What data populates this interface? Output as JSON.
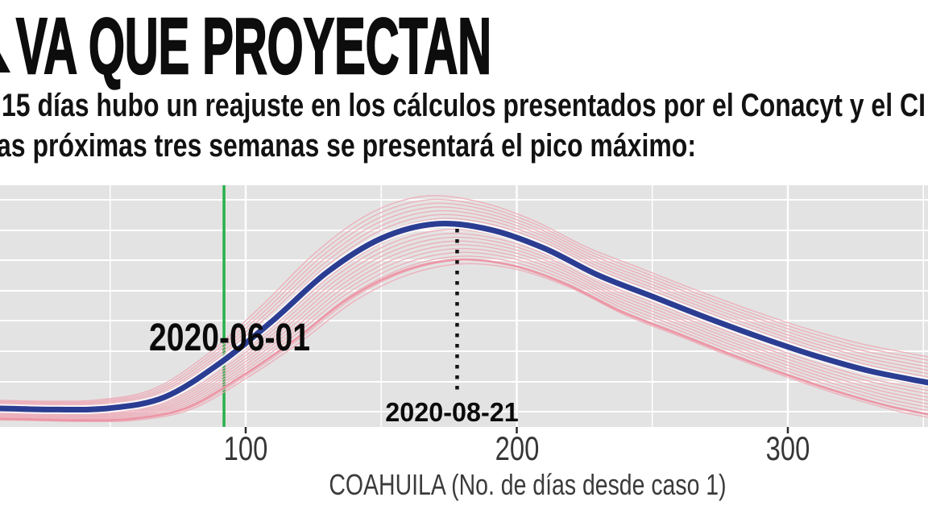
{
  "header": {
    "title": "VA QUE PROYECTAN",
    "subtitle_line1": "15 días hubo un reajuste en los cálculos presentados por el Conacyt y el CI",
    "subtitle_line2": "as próximas tres semanas se presentará el pico máximo:"
  },
  "chart_data": {
    "type": "line",
    "title": "",
    "xlabel": "COAHUILA (No. de días desde caso 1)",
    "ylabel": "",
    "x_ticks": [
      100,
      200,
      300
    ],
    "x_minor_ticks": [
      50,
      150,
      250,
      350
    ],
    "x_visible_range": [
      9,
      352
    ],
    "y_axis_labels_visible": false,
    "grid": {
      "background": "on",
      "h_lines": 8,
      "legend": "none"
    },
    "series": [
      {
        "name": "curva-central-proyectada",
        "color": "#2b3d92",
        "points": [
          [
            -15,
            0.08
          ],
          [
            8,
            0.077
          ],
          [
            30,
            0.072
          ],
          [
            50,
            0.078
          ],
          [
            70,
            0.123
          ],
          [
            90,
            0.26
          ],
          [
            110,
            0.44
          ],
          [
            130,
            0.64
          ],
          [
            150,
            0.78
          ],
          [
            170,
            0.84
          ],
          [
            190,
            0.817
          ],
          [
            210,
            0.74
          ],
          [
            230,
            0.628
          ],
          [
            250,
            0.54
          ],
          [
            270,
            0.452
          ],
          [
            290,
            0.37
          ],
          [
            310,
            0.295
          ],
          [
            330,
            0.232
          ],
          [
            352,
            0.183
          ],
          [
            372,
            0.14
          ]
        ],
        "y_units": "relativo al panel (0 = base, 1 = tope; eje Y sin etiquetas visibles)"
      }
    ],
    "fan": {
      "name": "escenarios-ensamble",
      "count": 19,
      "offset_range": [
        -0.165,
        0.115
      ],
      "delay_range": [
        10,
        -4
      ],
      "envelope_start": 50,
      "envelope_span": 110,
      "envelope_min": 0.3,
      "median": {
        "offset": -0.148,
        "delay": 8
      }
    },
    "annotations": [
      {
        "label": "2020-06-01",
        "day": 92,
        "line_style": "solid",
        "color": "#28b14c"
      },
      {
        "label": "2020-08-21",
        "day": 178,
        "line_style": "dotted",
        "color": "#141414"
      }
    ],
    "colors": {
      "line_main": "#2b3d92",
      "line_casing": "rgba(255,255,255,0.85)",
      "scenario": "#edaab6",
      "scenario_strong": "#ec93a3",
      "event_line": "#28b14c",
      "dotted_line": "#141414",
      "panel_bg": "#e3e3e3",
      "grid": "#ffffff",
      "tick_mark": "#2b2b2b"
    }
  }
}
